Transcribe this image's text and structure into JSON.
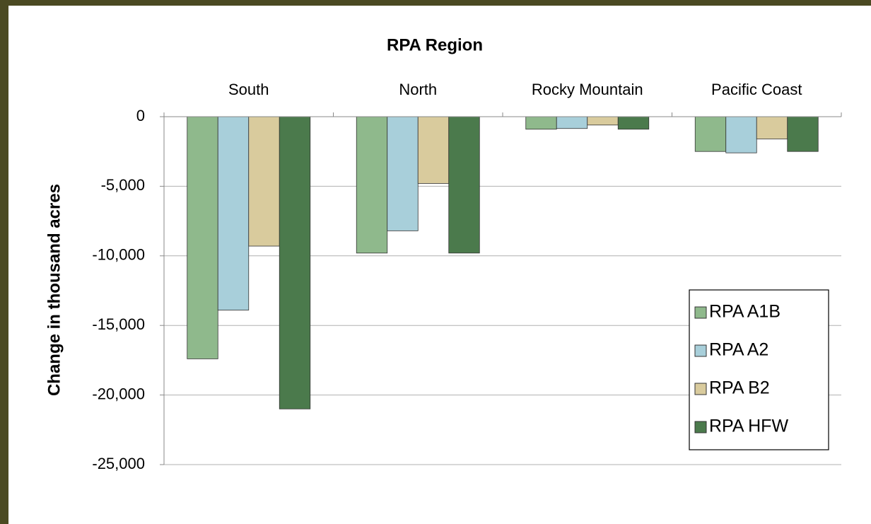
{
  "chart_data": {
    "type": "bar",
    "title": "RPA Region",
    "ylabel": "Change in thousand acres",
    "categories": [
      "South",
      "North",
      "Rocky Mountain",
      "Pacific Coast"
    ],
    "series": [
      {
        "name": "RPA A1B",
        "color": "#8fb98c",
        "values": [
          -17400,
          -9800,
          -900,
          -2500
        ]
      },
      {
        "name": "RPA A2",
        "color": "#a8cfda",
        "values": [
          -13900,
          -8200,
          -850,
          -2600
        ]
      },
      {
        "name": "RPA B2",
        "color": "#d9cb9d",
        "values": [
          -9300,
          -4800,
          -600,
          -1600
        ]
      },
      {
        "name": "RPA HFW",
        "color": "#4b7a4c",
        "values": [
          -21000,
          -9800,
          -900,
          -2500
        ]
      }
    ],
    "ylim": [
      -25000,
      0
    ],
    "yticks": [
      {
        "value": -25000,
        "label": "-25,000"
      },
      {
        "value": -20000,
        "label": "-20,000"
      },
      {
        "value": -15000,
        "label": "-15,000"
      },
      {
        "value": -10000,
        "label": "-10,000"
      },
      {
        "value": -5000,
        "label": "-5,000"
      },
      0
    ],
    "grid": true,
    "legend": "lower right"
  }
}
